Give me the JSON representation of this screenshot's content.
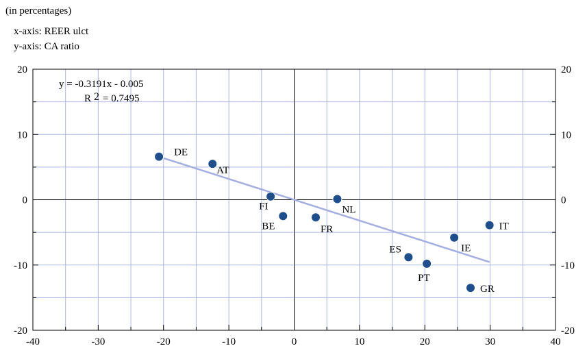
{
  "header": {
    "subtitle": "(in percentages)",
    "x_axis_desc": "x-axis: REER ulct",
    "y_axis_desc": "y-axis: CA ratio"
  },
  "chart_data": {
    "type": "scatter",
    "title": "",
    "xlabel": "",
    "ylabel": "",
    "xlim": [
      -40,
      40
    ],
    "ylim": [
      -20,
      20
    ],
    "x_ticks": [
      -40,
      -30,
      -20,
      -10,
      0,
      10,
      20,
      30,
      40
    ],
    "y_ticks": [
      -20,
      -10,
      0,
      10,
      20
    ],
    "grid": true,
    "colors": {
      "point": "#1f4e8c",
      "trend": "#a4aee0",
      "grid": "#a9b7e6",
      "axis": "#000000"
    },
    "points": [
      {
        "label": "DE",
        "x": -20.7,
        "y": 6.6
      },
      {
        "label": "AT",
        "x": -12.5,
        "y": 5.5
      },
      {
        "label": "FI",
        "x": -3.6,
        "y": 0.5
      },
      {
        "label": "BE",
        "x": -1.7,
        "y": -2.5
      },
      {
        "label": "FR",
        "x": 3.3,
        "y": -2.7
      },
      {
        "label": "NL",
        "x": 6.6,
        "y": 0.1
      },
      {
        "label": "ES",
        "x": 17.5,
        "y": -8.8
      },
      {
        "label": "PT",
        "x": 20.3,
        "y": -9.8
      },
      {
        "label": "IE",
        "x": 24.5,
        "y": -5.8
      },
      {
        "label": "IT",
        "x": 29.9,
        "y": -3.9
      },
      {
        "label": "GR",
        "x": 27.0,
        "y": -13.5
      }
    ],
    "trendline": {
      "x_range": [
        -20.7,
        29.9
      ],
      "slope": -0.3191,
      "intercept": -0.005,
      "equation": "y = -0.3191x - 0.005",
      "r2_prefix": "R",
      "r2_sup": "2",
      "r2_value": "= 0.7495"
    }
  }
}
